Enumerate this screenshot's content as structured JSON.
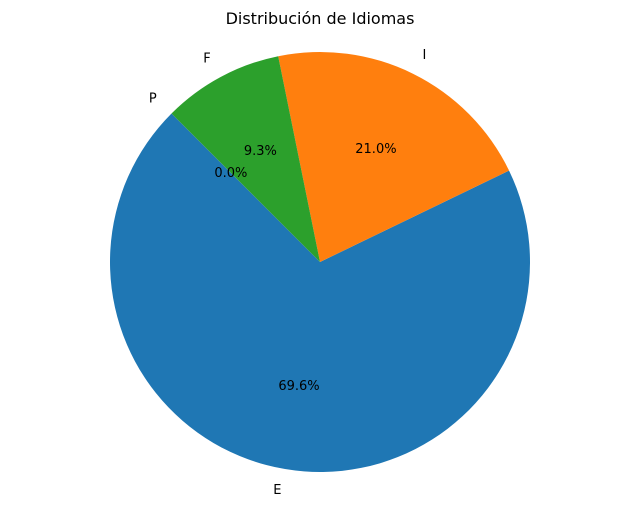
{
  "chart_data": {
    "type": "pie",
    "title": "Distribución de Idiomas",
    "start_angle_deg": 135,
    "direction": "counterclockwise",
    "slices": [
      {
        "label": "E",
        "value": 69.6,
        "pct_label": "69.6%",
        "color": "#1f77b4"
      },
      {
        "label": "I",
        "value": 21.0,
        "pct_label": "21.0%",
        "color": "#ff7f0e"
      },
      {
        "label": "F",
        "value": 9.3,
        "pct_label": "9.3%",
        "color": "#2ca02c"
      },
      {
        "label": "P",
        "value": 0.0,
        "pct_label": "0.0%",
        "color": "#d62728"
      }
    ]
  }
}
